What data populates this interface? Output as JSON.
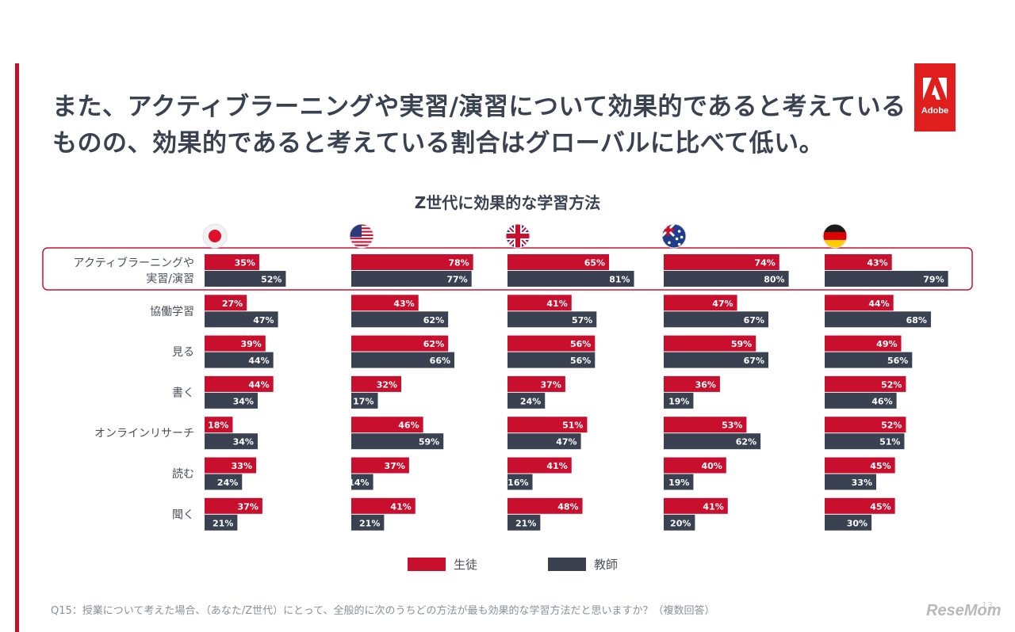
{
  "headline": "また、アクティブラーニングや実習/演習について効果的であると考えているものの、効果的であると考えている割合はグローバルに比べて低い。",
  "logo": {
    "text": "Adobe",
    "color": "#e01e1e"
  },
  "footnote": "Q15：授業について考えた場合、（あなた/Z世代）にとって、全般的に次のうちどの方法が最も効果的な学習方法だと思いますか？（複数回答）",
  "page_number": "13",
  "watermark": "ReseMom",
  "countries": [
    {
      "flag": "japan-flag-icon"
    },
    {
      "flag": "usa-flag-icon"
    },
    {
      "flag": "uk-flag-icon"
    },
    {
      "flag": "australia-flag-icon"
    },
    {
      "flag": "germany-flag-icon"
    }
  ],
  "colors": {
    "student": "#c8102e",
    "teacher": "#3a4252",
    "highlight": "#c8102e",
    "accent": "#c8102e"
  },
  "chart_data": {
    "type": "bar",
    "orientation": "horizontal",
    "title": "Z世代に効果的な学習方法",
    "categories": [
      "アクティブラーニングや実習/演習",
      "協働学習",
      "見る",
      "書く",
      "オンラインリサーチ",
      "読む",
      "聞く"
    ],
    "category_lines": [
      [
        "アクティブラーニングや",
        "実習/演習"
      ],
      [
        "協働学習"
      ],
      [
        "見る"
      ],
      [
        "書く"
      ],
      [
        "オンラインリサーチ"
      ],
      [
        "読む"
      ],
      [
        "聞く"
      ]
    ],
    "highlighted_category": "アクティブラーニングや実習/演習",
    "unit": "%",
    "legend": [
      "生徒",
      "教師"
    ],
    "legend_position": "bottom",
    "panels": [
      {
        "flag": "japan-flag-icon",
        "series": [
          {
            "name": "生徒",
            "values": [
              35,
              27,
              39,
              44,
              18,
              33,
              37
            ]
          },
          {
            "name": "教師",
            "values": [
              52,
              47,
              44,
              34,
              34,
              24,
              21
            ]
          }
        ]
      },
      {
        "flag": "usa-flag-icon",
        "series": [
          {
            "name": "生徒",
            "values": [
              78,
              43,
              62,
              32,
              46,
              37,
              41
            ]
          },
          {
            "name": "教師",
            "values": [
              77,
              62,
              66,
              17,
              59,
              14,
              21
            ]
          }
        ]
      },
      {
        "flag": "uk-flag-icon",
        "series": [
          {
            "name": "生徒",
            "values": [
              65,
              41,
              56,
              37,
              51,
              41,
              48
            ]
          },
          {
            "name": "教師",
            "values": [
              81,
              57,
              56,
              24,
              47,
              16,
              21
            ]
          }
        ]
      },
      {
        "flag": "australia-flag-icon",
        "series": [
          {
            "name": "生徒",
            "values": [
              74,
              47,
              59,
              36,
              53,
              40,
              41
            ]
          },
          {
            "name": "教師",
            "values": [
              80,
              67,
              67,
              19,
              62,
              19,
              20
            ]
          }
        ]
      },
      {
        "flag": "germany-flag-icon",
        "series": [
          {
            "name": "生徒",
            "values": [
              43,
              44,
              49,
              52,
              52,
              45,
              45
            ]
          },
          {
            "name": "教師",
            "values": [
              79,
              68,
              56,
              46,
              51,
              33,
              30
            ]
          }
        ]
      }
    ]
  }
}
